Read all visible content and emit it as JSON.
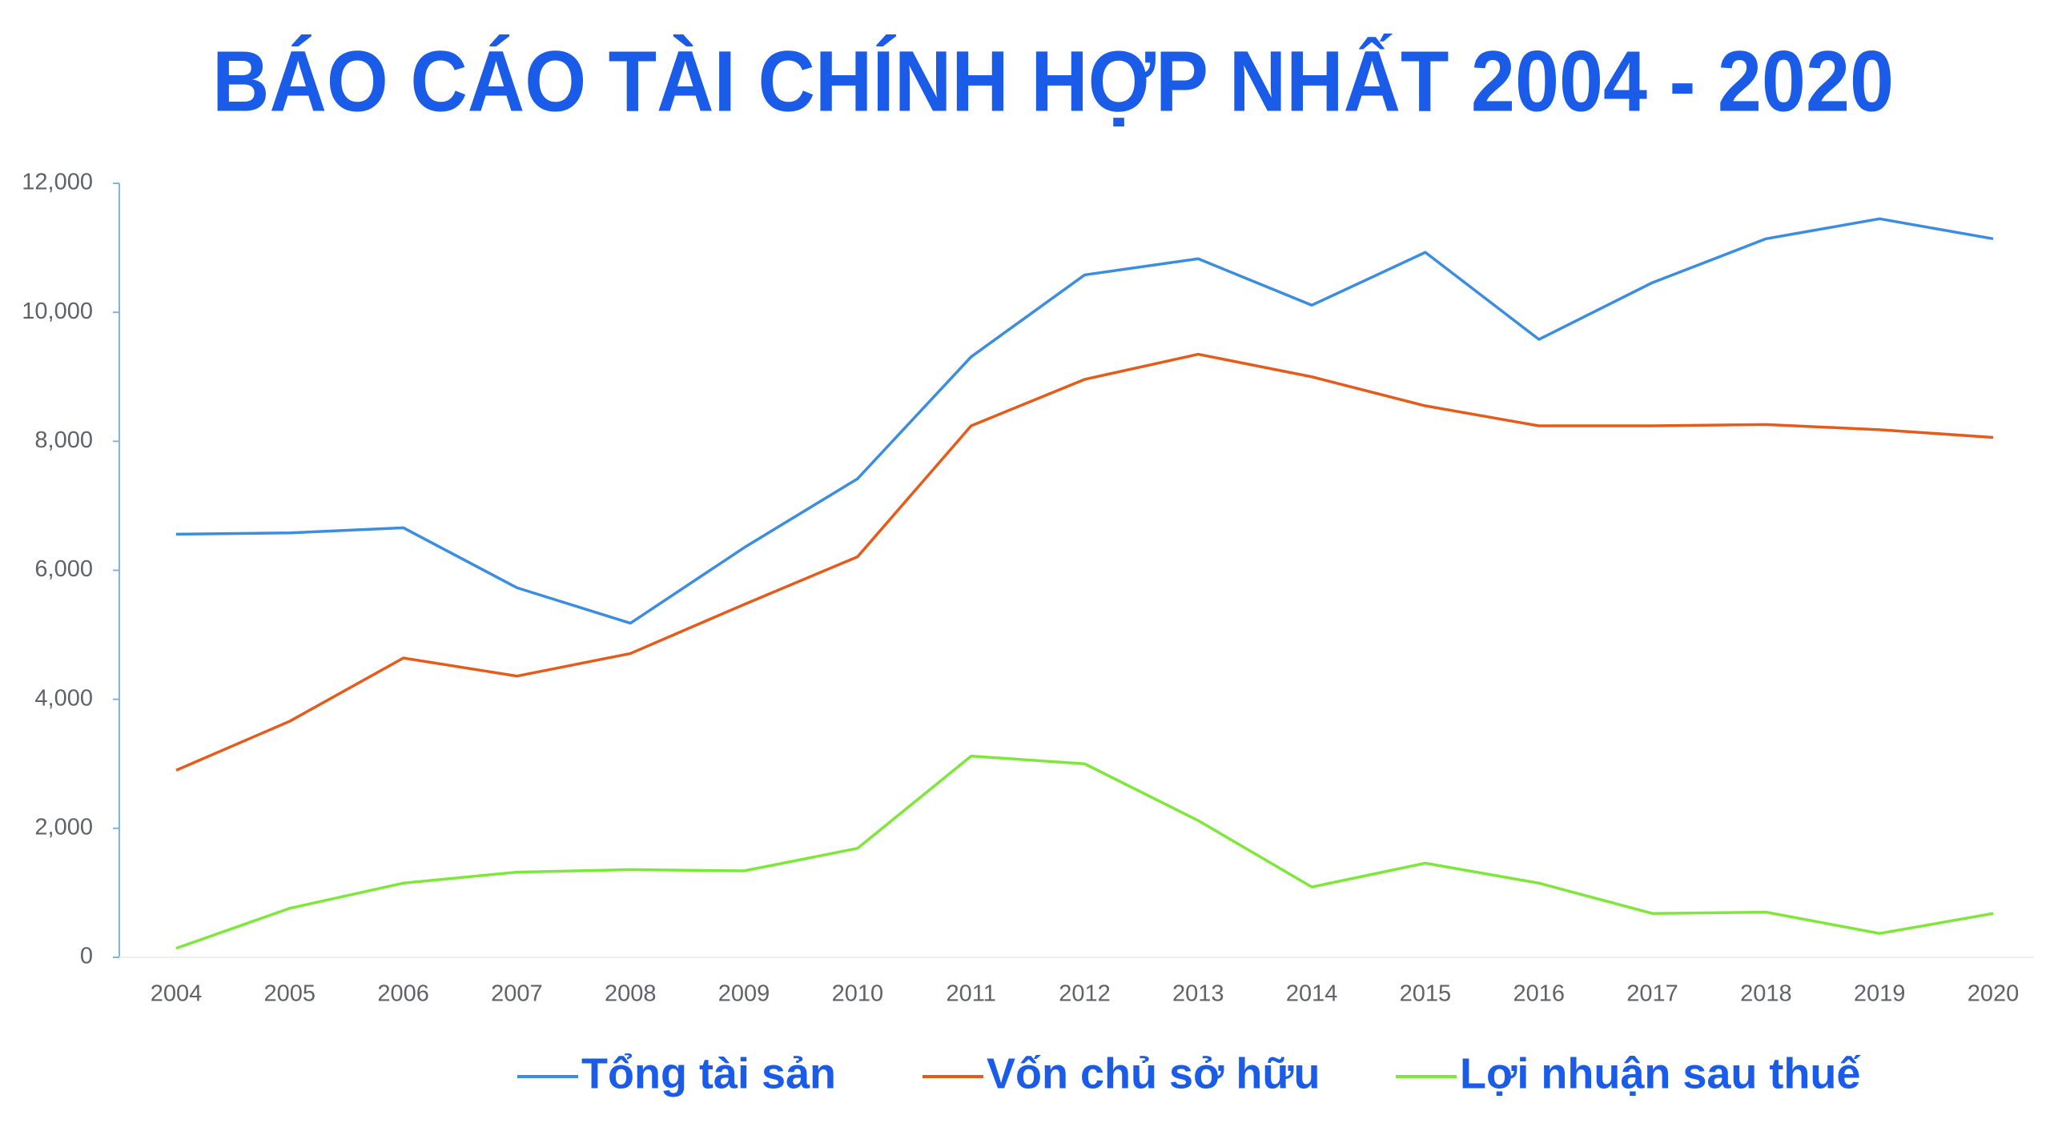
{
  "chart_data": {
    "type": "line",
    "title": "BÁO CÁO TÀI CHÍNH HỢP NHẤT 2004 - 2020",
    "categories": [
      "2004",
      "2005",
      "2006",
      "2007",
      "2008",
      "2009",
      "2010",
      "2011",
      "2012",
      "2013",
      "2014",
      "2015",
      "2016",
      "2017",
      "2018",
      "2019",
      "2020"
    ],
    "series": [
      {
        "name": "Tổng tài sản",
        "color": "#3a8de0",
        "values": [
          6560,
          6580,
          6660,
          5730,
          5180,
          6350,
          7420,
          9310,
          10580,
          10830,
          10110,
          10930,
          9580,
          10460,
          11140,
          11450,
          11140
        ]
      },
      {
        "name": "Vốn chủ sở hữu",
        "color": "#e65a1a",
        "values": [
          2900,
          3660,
          4640,
          4360,
          4710,
          5470,
          6210,
          8240,
          8960,
          9350,
          9000,
          8550,
          8240,
          8240,
          8260,
          8180,
          8060
        ]
      },
      {
        "name": "Lợi nhuận sau thuế",
        "color": "#7de83a",
        "values": [
          140,
          760,
          1150,
          1320,
          1360,
          1340,
          1690,
          3120,
          3000,
          2120,
          1090,
          1460,
          1150,
          680,
          700,
          370,
          680
        ]
      }
    ],
    "ylim": [
      0,
      12000
    ],
    "yticks": [
      0,
      {
        "value": 2000,
        "label": "2,000"
      },
      {
        "value": 4000,
        "label": "4,000"
      },
      {
        "value": 6000,
        "label": "6,000"
      },
      {
        "value": 8000,
        "label": "8,000"
      },
      {
        "value": 10000,
        "label": "10,000"
      },
      {
        "value": 12000,
        "label": "12,000"
      }
    ],
    "grid": false,
    "legend": "bottom"
  }
}
